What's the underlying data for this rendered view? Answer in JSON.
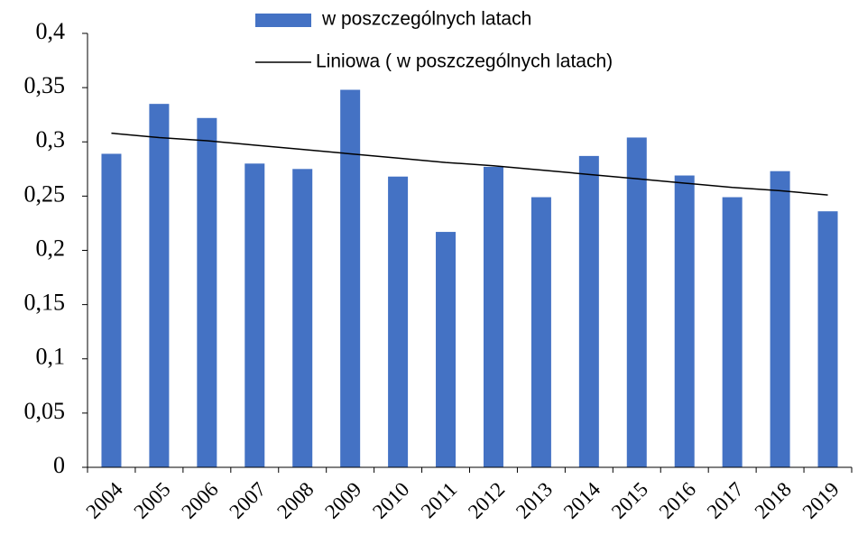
{
  "chart_data": {
    "type": "bar",
    "categories": [
      "2004",
      "2005",
      "2006",
      "2007",
      "2008",
      "2009",
      "2010",
      "2011",
      "2012",
      "2013",
      "2014",
      "2015",
      "2016",
      "2017",
      "2018",
      "2019"
    ],
    "series": [
      {
        "name": "w poszczególnych latach",
        "color": "#4472c4",
        "values": [
          0.289,
          0.335,
          0.322,
          0.28,
          0.275,
          0.348,
          0.268,
          0.217,
          0.277,
          0.249,
          0.287,
          0.304,
          0.269,
          0.249,
          0.273,
          0.236
        ]
      },
      {
        "name": "Liniowa ( w poszczególnych latach)",
        "type": "line",
        "color": "#000000",
        "values": [
          0.308,
          0.304,
          0.301,
          0.297,
          0.293,
          0.289,
          0.285,
          0.281,
          0.278,
          0.274,
          0.27,
          0.266,
          0.262,
          0.258,
          0.255,
          0.251
        ]
      }
    ],
    "ylim": [
      0,
      0.4
    ],
    "yticks": [
      0,
      {
        "value": 0.05,
        "label": "0,05"
      },
      {
        "value": 0.1,
        "label": "0,1"
      },
      {
        "value": 0.15,
        "label": "0,15"
      },
      {
        "value": 0.2,
        "label": "0,2"
      },
      {
        "value": 0.25,
        "label": "0,25"
      },
      {
        "value": 0.3,
        "label": "0,3"
      },
      {
        "value": 0.35,
        "label": "0,35"
      },
      {
        "value": 0.4,
        "label": "0,4"
      }
    ],
    "grid": false
  }
}
